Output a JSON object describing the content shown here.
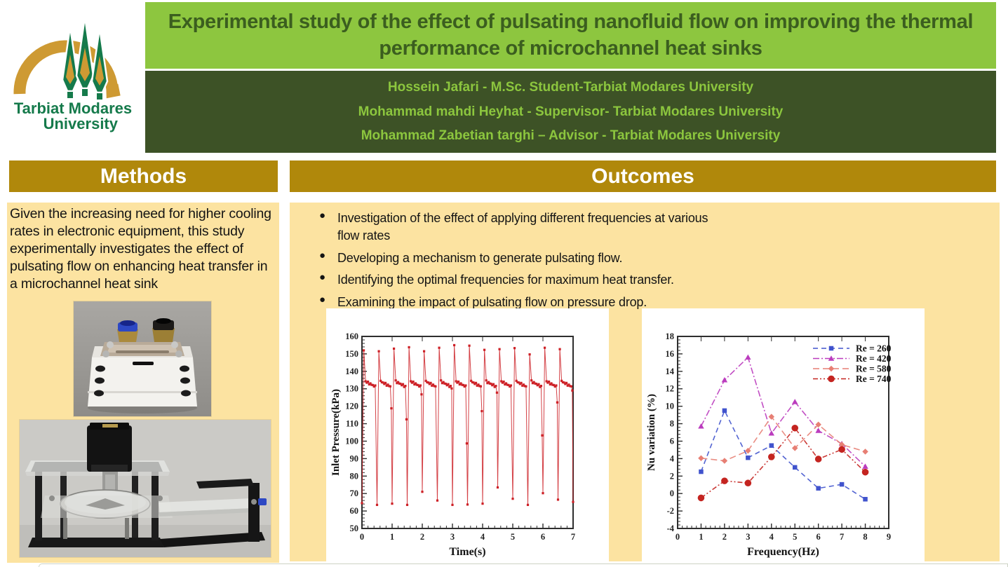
{
  "poster": {
    "title": "Experimental study of the effect of pulsating nanofluid flow on improving the thermal performance of microchannel heat sinks",
    "authors": [
      "Hossein Jafari - M.Sc. Student-Tarbiat Modares University",
      "Mohammad mahdi Heyhat - Supervisor- Tarbiat Modares University",
      "Mohammad Zabetian targhi – Advisor - Tarbiat Modares University"
    ],
    "logo": {
      "org_line1": "Tarbiat Modares",
      "org_line2": "University",
      "tree_icon": "cypress-trees-icon",
      "arch_icon": "gold-arch-icon"
    },
    "colors": {
      "title_band_bg": "#8dc63f",
      "title_text": "#3b5e1f",
      "authors_band_bg": "#3d5226",
      "authors_text": "#8cc63e",
      "section_header_bg": "#b0880b",
      "section_header_text": "#ffffff",
      "panel_bg": "#fce3a1",
      "logo_green": "#157a4b",
      "logo_gold": "#ce9a33"
    }
  },
  "methods": {
    "header": "Methods",
    "body": "Given the increasing need for higher cooling rates in electronic equipment, this study experimentally investigates the effect of pulsating flow on enhancing heat transfer in a microchannel heat sink",
    "photos": [
      {
        "name": "microchannel-heat-sink-photo",
        "description": "Microchannel heat sink block with blue and black push-fit inlet/outlet fittings on brass connectors"
      },
      {
        "name": "pulsating-flow-mechanism-photo",
        "description": "Pulsating flow generator: stepper motor on black frame with acrylic plates, rotating disc and transparent channel arm"
      }
    ]
  },
  "outcomes": {
    "header": "Outcomes",
    "bullets": [
      "Investigation of the effect of applying different frequencies at various flow rates",
      "Developing a mechanism to generate pulsating flow.",
      "Identifying the optimal frequencies for maximum heat transfer.",
      "Examining the impact of pulsating flow on pressure drop."
    ]
  },
  "chart_data": [
    {
      "id": "inlet-pressure-chart",
      "type": "line",
      "title": "",
      "xlabel": "Time(s)",
      "ylabel": "Inlet Pressure(kPa)",
      "xlim": [
        0,
        7
      ],
      "ylim": [
        50,
        160
      ],
      "xticks": [
        0,
        1,
        2,
        3,
        4,
        5,
        6,
        7
      ],
      "yticks": [
        50,
        60,
        70,
        80,
        90,
        100,
        110,
        120,
        130,
        140,
        150,
        160
      ],
      "grid": false,
      "line_color": "#cd2026",
      "marker": "square",
      "pulse": {
        "period_s": 0.5,
        "baseline_start_kPa": 134.2,
        "baseline_end_kPa": 131.3,
        "peaks_kPa": [
          152,
          151.5,
          153,
          153.8,
          151.5,
          153.5,
          155,
          154.7,
          152.3,
          152.7,
          153.3,
          149.7,
          153.5,
          152.7
        ],
        "minima_kPa": [
          64.5,
          63.5,
          64.2,
          63.5,
          71,
          66,
          63.5,
          63.7,
          64.2,
          73.5,
          67,
          63.5,
          70.2,
          66.5,
          65.2
        ],
        "pre_drop_kPa": [
          null,
          118.8,
          112.5,
          126.8,
          null,
          130.2,
          98.7,
          117.2,
          127.8,
          null,
          null,
          103.3,
          122.2,
          129
        ]
      }
    },
    {
      "id": "nu-variation-chart",
      "type": "line",
      "title": "",
      "xlabel": "Frequency(Hz)",
      "ylabel": "Nu variation (%)",
      "xlim": [
        0,
        9
      ],
      "ylim": [
        -4,
        18
      ],
      "xticks": [
        0,
        1,
        2,
        3,
        4,
        5,
        6,
        7,
        8,
        9
      ],
      "yticks": [
        -4,
        -2,
        0,
        2,
        4,
        6,
        8,
        10,
        12,
        14,
        16,
        18
      ],
      "grid": false,
      "legend_position": "top-right",
      "x": [
        1,
        2,
        3,
        4,
        5,
        6,
        7,
        8
      ],
      "series": [
        {
          "name": "Re = 260",
          "color": "#4053cd",
          "marker": "square",
          "dash": "7 5",
          "values": [
            2.5,
            9.5,
            4.1,
            5.5,
            3.0,
            0.6,
            1.05,
            -0.65
          ]
        },
        {
          "name": "Re = 420",
          "color": "#bb3cbe",
          "marker": "triangle",
          "dash": "9 3 2 3",
          "values": [
            7.7,
            13.0,
            15.6,
            6.9,
            10.5,
            7.2,
            5.7,
            3.1
          ]
        },
        {
          "name": "Re = 580",
          "color": "#e77f74",
          "marker": "diamond",
          "dash": "9 5",
          "values": [
            4.05,
            3.75,
            4.9,
            8.8,
            5.2,
            7.9,
            5.6,
            4.8
          ]
        },
        {
          "name": "Re = 740",
          "color": "#c42420",
          "marker": "circle",
          "dash": "7 3 2 3 2 3",
          "values": [
            -0.5,
            1.45,
            1.2,
            4.2,
            7.5,
            3.95,
            5.05,
            2.45
          ]
        }
      ]
    }
  ]
}
